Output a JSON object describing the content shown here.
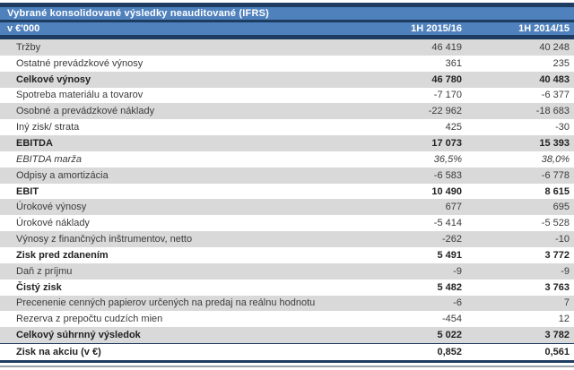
{
  "table": {
    "title": "Vybrané konsolidované výsledky neauditované (IFRS)",
    "columns": {
      "label": "v €'000",
      "col1": "1H 2015/16",
      "col2": "1H 2014/15"
    },
    "rows": [
      {
        "label": "Tržby",
        "v1": "46 419",
        "v2": "40 248",
        "style": "normal"
      },
      {
        "label": "Ostatné prevádzkové výnosy",
        "v1": "361",
        "v2": "235",
        "style": "normal"
      },
      {
        "label": "Celkové výnosy",
        "v1": "46 780",
        "v2": "40 483",
        "style": "bold"
      },
      {
        "label": "Spotreba materiálu a tovarov",
        "v1": "-7 170",
        "v2": "-6 377",
        "style": "normal"
      },
      {
        "label": "Osobné a prevádzkové náklady",
        "v1": "-22 962",
        "v2": "-18 683",
        "style": "normal"
      },
      {
        "label": "Iný zisk/ strata",
        "v1": "425",
        "v2": "-30",
        "style": "normal"
      },
      {
        "label": "EBITDA",
        "v1": "17 073",
        "v2": "15 393",
        "style": "bold"
      },
      {
        "label": "EBITDA marža",
        "v1": "36,5%",
        "v2": "38,0%",
        "style": "italic"
      },
      {
        "label": "Odpisy a amortizácia",
        "v1": "-6 583",
        "v2": "-6 778",
        "style": "normal"
      },
      {
        "label": "EBIT",
        "v1": "10 490",
        "v2": "8 615",
        "style": "bold"
      },
      {
        "label": "Úrokové výnosy",
        "v1": "677",
        "v2": "695",
        "style": "normal"
      },
      {
        "label": "Úrokové náklady",
        "v1": "-5 414",
        "v2": "-5 528",
        "style": "normal"
      },
      {
        "label": "Výnosy z finančných inštrumentov, netto",
        "v1": "-262",
        "v2": "-10",
        "style": "normal"
      },
      {
        "label": "Zisk pred zdanením",
        "v1": "5 491",
        "v2": "3 772",
        "style": "bold"
      },
      {
        "label": "Daň z príjmu",
        "v1": "-9",
        "v2": "-9",
        "style": "normal"
      },
      {
        "label": "Čistý zisk",
        "v1": "5 482",
        "v2": "3 763",
        "style": "bold"
      },
      {
        "label": "Precenenie cenných papierov určených na predaj  na reálnu hodnotu",
        "v1": "-6",
        "v2": "7",
        "style": "normal"
      },
      {
        "label": "Rezerva z prepočtu cudzích mien",
        "v1": "-454",
        "v2": "12",
        "style": "normal"
      },
      {
        "label": "Celkový súhrnný výsledok",
        "v1": "5 022",
        "v2": "3 782",
        "style": "bold"
      },
      {
        "label": "Zisk na akciu (v €)",
        "v1": "0,852",
        "v2": "0,561",
        "style": "bold-last"
      }
    ]
  },
  "colors": {
    "header_blue": "#4f81bd",
    "rule_navy": "#1e3c5f",
    "band_gray": "#d9d9d9",
    "text": "#3b3b3b"
  }
}
